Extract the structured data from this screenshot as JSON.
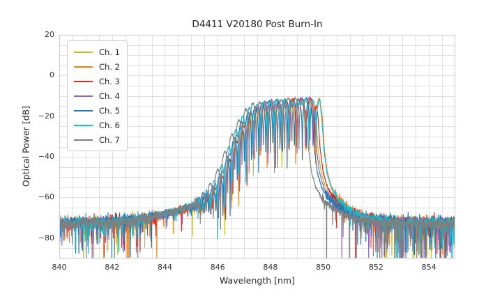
{
  "chart_data": {
    "type": "line",
    "title": "D4411 V20180 Post Burn-In",
    "xlabel": "Wavelength [nm]",
    "ylabel": "Optical Power [dB]",
    "xlim": [
      840,
      855
    ],
    "ylim": [
      -90,
      20
    ],
    "xticks": [
      {
        "value": 840,
        "label": "840"
      },
      {
        "value": 842,
        "label": "842"
      },
      {
        "value": 844,
        "label": "844"
      },
      {
        "value": 846,
        "label": "846"
      },
      {
        "value": 848,
        "label": "848"
      },
      {
        "value": 850,
        "label": "850"
      },
      {
        "value": 852,
        "label": "852"
      },
      {
        "value": 854,
        "label": "854"
      }
    ],
    "yticks": [
      {
        "value": 20,
        "label": "20"
      },
      {
        "value": 0,
        "label": "0"
      },
      {
        "value": -20,
        "label": "−20"
      },
      {
        "value": -40,
        "label": "−40"
      },
      {
        "value": -60,
        "label": "−60"
      },
      {
        "value": -80,
        "label": "−80"
      }
    ],
    "grid": {
      "visible": true,
      "x_step_nm": 0.5,
      "y_step_db": 5,
      "color": "#dfdfdf",
      "spine_color": "#c9c9c9"
    },
    "legend": {
      "position": "upper-left"
    },
    "series": [
      {
        "name": "Ch. 1",
        "color": "#bcbd22",
        "offset_nm": 0.04,
        "fringe_phase_nm": 0.05,
        "cliff_shift_nm": 0.1,
        "seed": 11
      },
      {
        "name": "Ch. 2",
        "color": "#ff7f0e",
        "offset_nm": 0.16,
        "fringe_phase_nm": 0.18,
        "cliff_shift_nm": 0.22,
        "seed": 22
      },
      {
        "name": "Ch. 3",
        "color": "#d62728",
        "offset_nm": 0.1,
        "fringe_phase_nm": 0.02,
        "cliff_shift_nm": 0.12,
        "seed": 33
      },
      {
        "name": "Ch. 4",
        "color": "#9467bd",
        "offset_nm": 0.0,
        "fringe_phase_nm": 0.11,
        "cliff_shift_nm": 0.08,
        "seed": 44
      },
      {
        "name": "Ch. 5",
        "color": "#1f77b4",
        "offset_nm": -0.05,
        "fringe_phase_nm": 0.07,
        "cliff_shift_nm": 0.05,
        "seed": 55
      },
      {
        "name": "Ch. 6",
        "color": "#17becf",
        "offset_nm": -0.14,
        "fringe_phase_nm": 0.22,
        "cliff_shift_nm": 0.5,
        "seed": 66
      },
      {
        "name": "Ch. 7",
        "color": "#7f7f7f",
        "offset_nm": -0.22,
        "fringe_phase_nm": 0.15,
        "cliff_shift_nm": 0.0,
        "seed": 77
      }
    ],
    "spectrum_model": {
      "envelope_keypoints_nm_db": [
        [
          839.5,
          -72.8
        ],
        [
          842.0,
          -72.0
        ],
        [
          843.2,
          -70.8
        ],
        [
          844.0,
          -68.2
        ],
        [
          844.6,
          -66.2
        ],
        [
          845.1,
          -64.0
        ],
        [
          845.45,
          -61.5
        ],
        [
          845.75,
          -57.5
        ],
        [
          846.05,
          -51.0
        ],
        [
          846.35,
          -42.0
        ],
        [
          846.65,
          -31.5
        ],
        [
          846.95,
          -23.0
        ],
        [
          847.3,
          -16.5
        ],
        [
          847.7,
          -13.4
        ],
        [
          848.2,
          -12.7
        ],
        [
          848.7,
          -12.2
        ],
        [
          849.1,
          -11.7
        ],
        [
          849.5,
          -11.2
        ],
        [
          849.58,
          -20.0
        ],
        [
          849.66,
          -36.0
        ],
        [
          849.78,
          -48.0
        ],
        [
          849.95,
          -55.5
        ],
        [
          850.2,
          -60.5
        ],
        [
          850.6,
          -65.0
        ],
        [
          851.1,
          -68.5
        ],
        [
          851.7,
          -70.8
        ],
        [
          852.6,
          -72.0
        ],
        [
          855.5,
          -72.8
        ]
      ],
      "fringe": {
        "period_nm": 0.27,
        "log_amp_db": 7.2,
        "eps": 0.008,
        "ramp_start_nm": 845.15,
        "ramp_width_nm": 1.0,
        "stop_nm": 849.54
      },
      "noise": {
        "floor_sigma_db": 1.35,
        "shoulder_sigma_db": 0.8,
        "tail_sigma_db": 1.0,
        "signal_sigma_db": 0.3,
        "spike_prob_left": 0.06,
        "spike_prob_shoulder": 0.018,
        "spike_prob_tail": 0.035,
        "spike_prob_right": 0.115,
        "spike_depth_scale_left_db": 5.5,
        "spike_depth_scale_right_db": 7.5
      },
      "sample_step_nm": 0.008
    },
    "summary": {
      "peak_power_db": -11.2,
      "noise_floor_db": -72,
      "peak_band_nm": [
        846,
        850
      ]
    }
  }
}
